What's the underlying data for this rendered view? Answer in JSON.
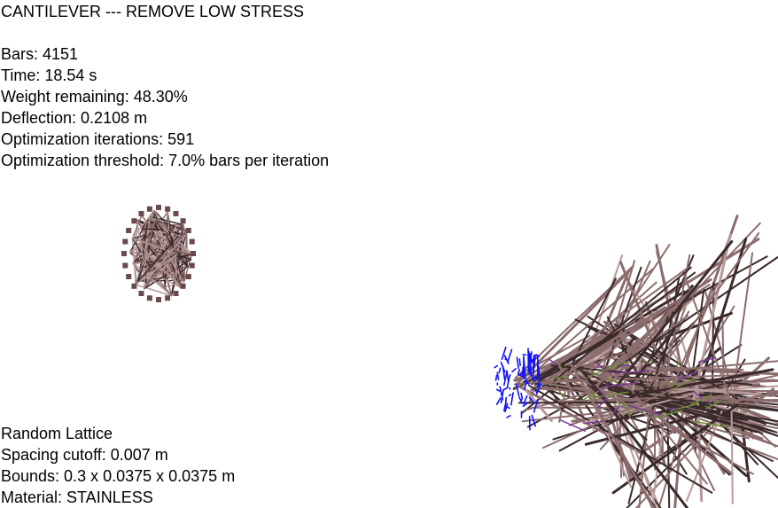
{
  "header": {
    "title": "CANTILEVER --- REMOVE LOW STRESS"
  },
  "stats": {
    "bars": "Bars: 4151",
    "time": "Time: 18.54 s",
    "weight_remaining": "Weight remaining: 48.30%",
    "deflection": "Deflection: 0.2108 m",
    "iterations": "Optimization iterations: 591",
    "threshold": "Optimization threshold: 7.0% bars per iteration"
  },
  "lattice_info": {
    "type": "Random Lattice",
    "spacing_cutoff": "Spacing cutoff: 0.007 m",
    "bounds": "Bounds: 0.3 x 0.0375 x 0.0375 m",
    "material": "Material: STAINLESS"
  },
  "colors": {
    "bar": "#8c6d6d",
    "bar_dark": "#3a2a2a",
    "bar_light": "#b89a9a",
    "fixed_support": "#1010ff",
    "compression": "#7a3b9a",
    "tension": "#6f8a3a",
    "background": "#ffffff"
  }
}
